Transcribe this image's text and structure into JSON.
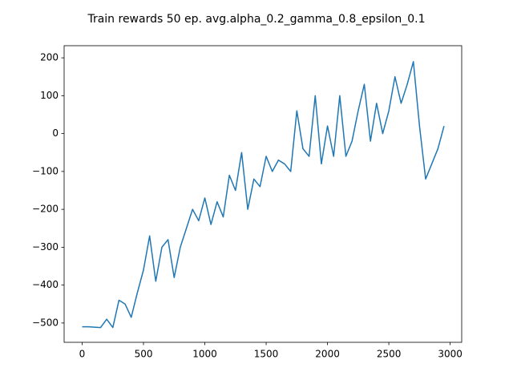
{
  "chart_data": {
    "type": "line",
    "title": "Train rewards 50 ep. avg.alpha_0.2_gamma_0.8_epsilon_0.1",
    "x": [
      0,
      50,
      100,
      150,
      200,
      250,
      300,
      350,
      400,
      450,
      500,
      550,
      600,
      650,
      700,
      750,
      800,
      850,
      900,
      950,
      1000,
      1050,
      1100,
      1150,
      1200,
      1250,
      1300,
      1350,
      1400,
      1450,
      1500,
      1550,
      1600,
      1650,
      1700,
      1750,
      1800,
      1850,
      1900,
      1950,
      2000,
      2050,
      2100,
      2150,
      2200,
      2250,
      2300,
      2350,
      2400,
      2450,
      2500,
      2550,
      2600,
      2650,
      2700,
      2750,
      2800,
      2850,
      2900,
      2950
    ],
    "series": [
      {
        "color": "#1f77b4",
        "values": [
          -510,
          -510,
          -511,
          -512,
          -490,
          -512,
          -440,
          -450,
          -485,
          -420,
          -360,
          -270,
          -390,
          -300,
          -280,
          -380,
          -300,
          -250,
          -200,
          -230,
          -170,
          -240,
          -180,
          -220,
          -110,
          -150,
          -50,
          -200,
          -120,
          -140,
          -60,
          -100,
          -70,
          -80,
          -100,
          60,
          -40,
          -60,
          100,
          -80,
          20,
          -60,
          100,
          -60,
          -20,
          60,
          130,
          -20,
          80,
          0,
          60,
          150,
          80,
          130,
          190,
          20,
          -120,
          -80,
          -40,
          20
        ]
      }
    ],
    "xlim": [
      -147,
      3094
    ],
    "ylim": [
      -551,
      232
    ],
    "xticks": [
      0,
      500,
      1000,
      1500,
      2000,
      2500,
      3000
    ],
    "yticks": [
      {
        "value": -500,
        "label": "−500"
      },
      {
        "value": -400,
        "label": "−400"
      },
      {
        "value": -300,
        "label": "−300"
      },
      {
        "value": -200,
        "label": "−200"
      },
      {
        "value": -100,
        "label": "−100"
      },
      0,
      100,
      200
    ]
  }
}
